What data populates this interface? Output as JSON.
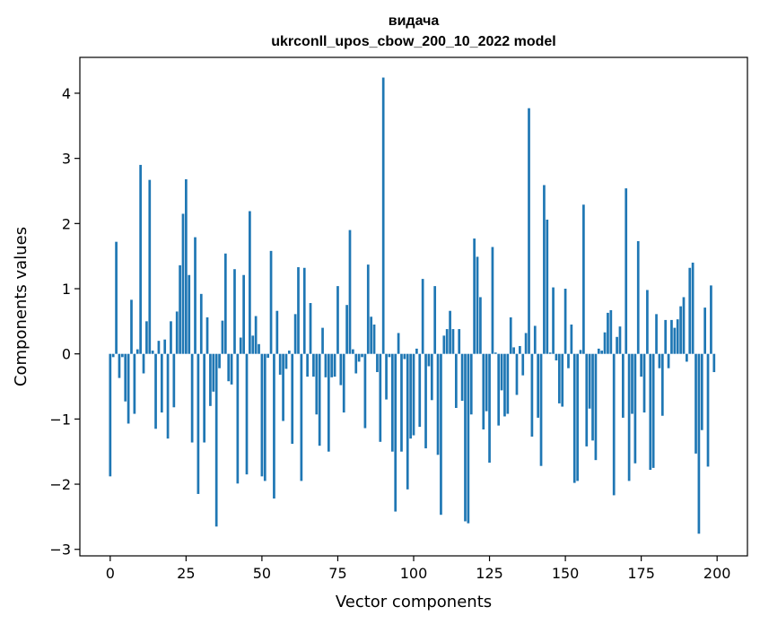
{
  "chart_data": {
    "type": "bar",
    "title": "видача",
    "subtitle": "ukrconll_upos_cbow_200_10_2022 model",
    "xlabel": "Vector components",
    "ylabel": "Components values",
    "xlim": [
      -10,
      210
    ],
    "ylim": [
      -3.1,
      4.55
    ],
    "xticks": [
      0,
      25,
      50,
      75,
      100,
      125,
      150,
      175,
      200
    ],
    "xtick_labels": [
      "0",
      "25",
      "50",
      "75",
      "100",
      "125",
      "150",
      "175",
      "200"
    ],
    "yticks": [
      -3,
      -2,
      -1,
      0,
      1,
      2,
      3,
      4
    ],
    "ytick_labels": [
      "−3",
      "−2",
      "−1",
      "0",
      "1",
      "2",
      "3",
      "4"
    ],
    "grid": false,
    "bar_color": "#1f77b4",
    "x": [
      0,
      1,
      2,
      3,
      4,
      5,
      6,
      7,
      8,
      9,
      10,
      11,
      12,
      13,
      14,
      15,
      16,
      17,
      18,
      19,
      20,
      21,
      22,
      23,
      24,
      25,
      26,
      27,
      28,
      29,
      30,
      31,
      32,
      33,
      34,
      35,
      36,
      37,
      38,
      39,
      40,
      41,
      42,
      43,
      44,
      45,
      46,
      47,
      48,
      49,
      50,
      51,
      52,
      53,
      54,
      55,
      56,
      57,
      58,
      59,
      60,
      61,
      62,
      63,
      64,
      65,
      66,
      67,
      68,
      69,
      70,
      71,
      72,
      73,
      74,
      75,
      76,
      77,
      78,
      79,
      80,
      81,
      82,
      83,
      84,
      85,
      86,
      87,
      88,
      89,
      90,
      91,
      92,
      93,
      94,
      95,
      96,
      97,
      98,
      99,
      100,
      101,
      102,
      103,
      104,
      105,
      106,
      107,
      108,
      109,
      110,
      111,
      112,
      113,
      114,
      115,
      116,
      117,
      118,
      119,
      120,
      121,
      122,
      123,
      124,
      125,
      126,
      127,
      128,
      129,
      130,
      131,
      132,
      133,
      134,
      135,
      136,
      137,
      138,
      139,
      140,
      141,
      142,
      143,
      144,
      145,
      146,
      147,
      148,
      149,
      150,
      151,
      152,
      153,
      154,
      155,
      156,
      157,
      158,
      159,
      160,
      161,
      162,
      163,
      164,
      165,
      166,
      167,
      168,
      169,
      170,
      171,
      172,
      173,
      174,
      175,
      176,
      177,
      178,
      179,
      180,
      181,
      182,
      183,
      184,
      185,
      186,
      187,
      188,
      189,
      190,
      191,
      192,
      193,
      194,
      195,
      196,
      197,
      198,
      199
    ],
    "values": [
      -1.88,
      -0.05,
      1.72,
      -0.37,
      -0.05,
      -0.73,
      -1.07,
      0.83,
      -0.92,
      0.07,
      2.9,
      -0.3,
      0.5,
      2.67,
      0.05,
      -1.15,
      0.2,
      -0.9,
      0.22,
      -1.3,
      0.5,
      -0.82,
      0.65,
      1.36,
      2.15,
      2.68,
      1.21,
      -1.36,
      1.79,
      -2.15,
      0.92,
      -1.36,
      0.56,
      -0.8,
      -0.58,
      -2.65,
      -0.22,
      0.51,
      1.54,
      -0.42,
      -0.47,
      1.3,
      -1.99,
      0.25,
      1.21,
      -1.85,
      2.19,
      0.28,
      0.58,
      0.15,
      -1.88,
      -1.95,
      -0.06,
      1.58,
      -2.22,
      0.66,
      -0.32,
      -1.03,
      -0.23,
      0.05,
      -1.38,
      0.61,
      1.33,
      -1.95,
      1.32,
      -0.35,
      0.78,
      -0.35,
      -0.93,
      -1.41,
      0.4,
      -0.36,
      -1.5,
      -0.36,
      -0.35,
      1.04,
      -0.48,
      -0.9,
      0.75,
      1.9,
      0.07,
      -0.3,
      -0.12,
      -0.05,
      -1.14,
      1.37,
      0.57,
      0.45,
      -0.28,
      -1.35,
      4.24,
      -0.7,
      -0.05,
      -1.5,
      -2.42,
      0.32,
      -1.5,
      -0.08,
      -2.08,
      -1.3,
      -1.25,
      0.08,
      -1.12,
      1.15,
      -1.45,
      -0.19,
      -0.71,
      1.04,
      -1.55,
      -2.47,
      0.28,
      0.38,
      0.66,
      0.38,
      -0.83,
      0.38,
      -0.72,
      -2.57,
      -2.6,
      -0.93,
      1.77,
      1.49,
      0.87,
      -1.16,
      -0.88,
      -1.67,
      1.64,
      0.02,
      -1.1,
      -0.56,
      -0.96,
      -0.92,
      0.56,
      0.1,
      -0.63,
      0.12,
      -0.33,
      0.32,
      3.77,
      -1.27,
      0.43,
      -0.98,
      -1.72,
      2.59,
      2.06,
      0.02,
      1.02,
      -0.1,
      -0.76,
      -0.81,
      1.0,
      -0.22,
      0.45,
      -1.98,
      -1.95,
      0.06,
      2.29,
      -1.42,
      -0.84,
      -1.33,
      -1.63,
      0.08,
      0.05,
      0.33,
      0.63,
      0.67,
      -2.17,
      0.26,
      0.42,
      -0.98,
      2.54,
      -1.95,
      -0.92,
      -1.68,
      1.73,
      -0.35,
      -0.9,
      0.98,
      -1.78,
      -1.75,
      0.61,
      -0.22,
      -0.95,
      0.52,
      -0.22,
      0.52,
      0.4,
      0.53,
      0.73,
      0.87,
      -0.12,
      1.32,
      1.4,
      -1.53,
      -2.76,
      -1.17,
      0.71,
      -1.73,
      1.05,
      -0.28
    ]
  }
}
